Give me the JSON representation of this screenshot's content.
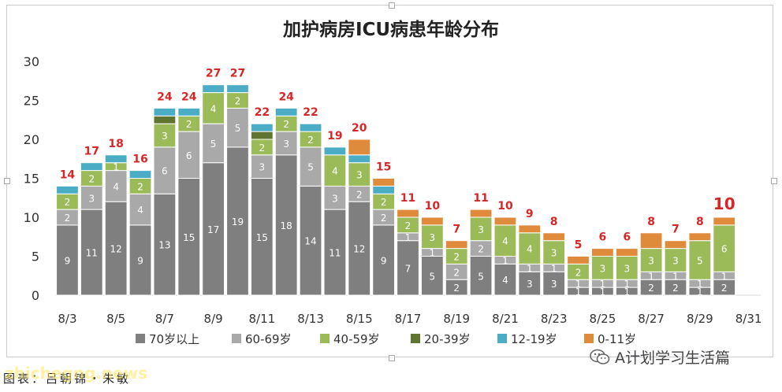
{
  "page": {
    "credit": "图表：吕朝锦・朱敏",
    "watermark_url": "zhichegng.news",
    "wechat_account": "A计划学习生活篇",
    "wechat_icon": "wechat-icon"
  },
  "chart_data": {
    "type": "bar",
    "stacked": true,
    "title": "加护病房ICU病患年龄分布",
    "xlabel": "",
    "ylabel": "",
    "ylim": [
      0,
      30
    ],
    "yticks": [
      0,
      5,
      10,
      15,
      20,
      25,
      30
    ],
    "grid": false,
    "legend_position": "bottom",
    "categories": [
      "8/3",
      "8/4",
      "8/5",
      "8/6",
      "8/7",
      "8/8",
      "8/9",
      "8/10",
      "8/11",
      "8/12",
      "8/13",
      "8/14",
      "8/15",
      "8/16",
      "8/17",
      "8/18",
      "8/19",
      "8/20",
      "8/21",
      "8/22",
      "8/23",
      "8/24",
      "8/25",
      "8/26",
      "8/27",
      "8/28",
      "8/29",
      "8/30"
    ],
    "tick_labels": [
      "8/3",
      "8/5",
      "8/7",
      "8/9",
      "8/11",
      "8/13",
      "8/15",
      "8/17",
      "8/19",
      "8/21",
      "8/23",
      "8/25",
      "8/27",
      "8/29",
      "8/31"
    ],
    "series": [
      {
        "name": "70岁以上",
        "color": "#7f7f7f",
        "values": [
          9,
          11,
          12,
          9,
          13,
          15,
          17,
          19,
          15,
          18,
          14,
          11,
          12,
          9,
          7,
          5,
          2,
          5,
          4,
          3,
          3,
          1,
          1,
          1,
          2,
          2,
          1,
          2
        ]
      },
      {
        "name": "60-69岁",
        "color": "#a9a9a9",
        "values": [
          2,
          3,
          4,
          4,
          6,
          6,
          5,
          5,
          3,
          3,
          5,
          3,
          2,
          2,
          1,
          1,
          2,
          2,
          1,
          1,
          1,
          1,
          1,
          1,
          1,
          1,
          1,
          1
        ]
      },
      {
        "name": "40-59岁",
        "color": "#9bbb59",
        "values": [
          2,
          2,
          1,
          2,
          3,
          2,
          4,
          2,
          2,
          2,
          2,
          4,
          3,
          2,
          2,
          3,
          2,
          3,
          4,
          4,
          3,
          2,
          3,
          3,
          3,
          3,
          5,
          6
        ]
      },
      {
        "name": "20-39岁",
        "color": "#5f7530",
        "values": [
          0,
          0,
          0,
          0,
          1,
          0,
          0,
          0,
          1,
          0,
          0,
          0,
          0,
          0,
          0,
          0,
          0,
          0,
          0,
          0,
          0,
          0,
          0,
          0,
          0,
          0,
          0,
          0
        ]
      },
      {
        "name": "12-19岁",
        "color": "#4bacc6",
        "values": [
          1,
          1,
          1,
          1,
          1,
          1,
          1,
          1,
          1,
          1,
          1,
          1,
          1,
          1,
          0,
          0,
          0,
          0,
          0,
          0,
          0,
          0,
          0,
          0,
          0,
          0,
          0,
          0
        ]
      },
      {
        "name": "0-11岁",
        "color": "#e08a3c",
        "values": [
          0,
          0,
          0,
          0,
          0,
          0,
          0,
          0,
          0,
          0,
          0,
          0,
          2,
          1,
          1,
          1,
          1,
          1,
          1,
          1,
          1,
          1,
          1,
          1,
          2,
          1,
          1,
          1
        ]
      }
    ],
    "totals": [
      14,
      17,
      18,
      16,
      24,
      24,
      27,
      27,
      22,
      24,
      22,
      19,
      20,
      15,
      11,
      10,
      7,
      11,
      10,
      9,
      8,
      5,
      6,
      6,
      8,
      7,
      8,
      10
    ],
    "total_color": "#d62728",
    "highlight_last_total": true
  }
}
